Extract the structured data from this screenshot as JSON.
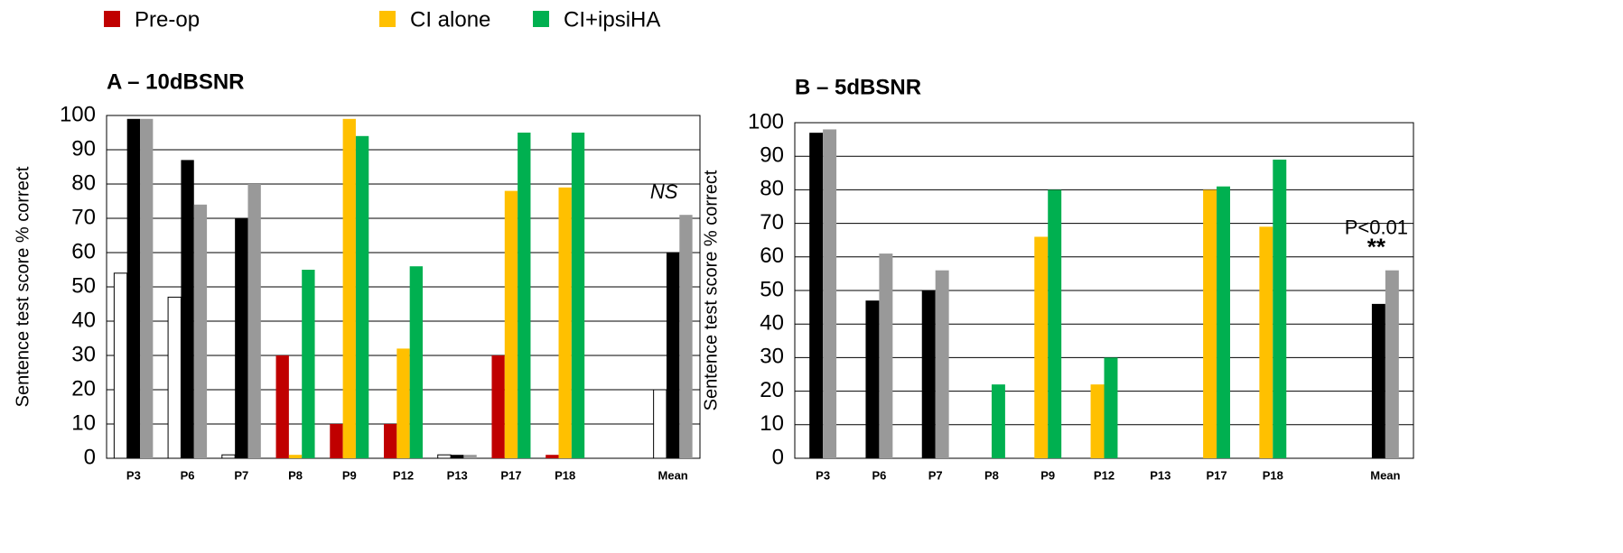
{
  "chart_data": [
    {
      "type": "bar",
      "title": "A – 10dBSNR",
      "y_label": "Sentence test score % correct",
      "categories": [
        "P3",
        "P6",
        "P7",
        "P8",
        "P9",
        "P12",
        "P13",
        "P17",
        "P18",
        null,
        "Mean"
      ],
      "series": [
        {
          "name": "Pre-op",
          "color": "#c00000",
          "colors": [
            "#ffffff",
            "#ffffff",
            "#ffffff",
            "#c00000",
            "#c00000",
            "#c00000",
            "#ffffff",
            "#c00000",
            "#c00000",
            "#ffffff",
            "#ffffff"
          ],
          "values": [
            54,
            47,
            1,
            30,
            10,
            10,
            1,
            30,
            1,
            null,
            20
          ]
        },
        {
          "name": "CI alone",
          "color": "#ffc000",
          "colors": [
            "#000000",
            "#000000",
            "#000000",
            "#ffc000",
            "#ffc000",
            "#ffc000",
            "#000000",
            "#ffc000",
            "#ffc000",
            "#000000",
            "#000000"
          ],
          "values": [
            99,
            87,
            70,
            1,
            99,
            32,
            1,
            78,
            79,
            null,
            60
          ]
        },
        {
          "name": "CI+ipsiHA",
          "color": "#00b050",
          "colors": [
            "#999999",
            "#999999",
            "#999999",
            "#00b050",
            "#00b050",
            "#00b050",
            "#999999",
            "#00b050",
            "#00b050",
            "#999999",
            "#999999"
          ],
          "values": [
            99,
            74,
            80,
            55,
            94,
            56,
            1,
            95,
            95,
            null,
            71
          ]
        }
      ],
      "annotations": [
        "NS"
      ],
      "ylim": [
        0,
        100
      ],
      "yticks": [
        0,
        10,
        20,
        30,
        40,
        50,
        60,
        70,
        80,
        90,
        100
      ],
      "grid": true
    },
    {
      "type": "bar",
      "title": "B – 5dBSNR",
      "y_label": "Sentence test score % correct",
      "categories": [
        "P3",
        "P6",
        "P7",
        "P8",
        "P9",
        "P12",
        "P13",
        "P17",
        "P18",
        null,
        "Mean"
      ],
      "series": [
        {
          "color": "#ffc000",
          "colors": [
            "#000000",
            "#000000",
            "#000000",
            "#ffc000",
            "#ffc000",
            "#ffc000",
            "#000000",
            "#ffc000",
            "#ffc000",
            "#000000",
            "#000000"
          ],
          "values": [
            97,
            47,
            50,
            null,
            66,
            22,
            null,
            80,
            69,
            null,
            46
          ]
        },
        {
          "color": "#00b050",
          "colors": [
            "#999999",
            "#999999",
            "#999999",
            "#00b050",
            "#00b050",
            "#00b050",
            "#999999",
            "#00b050",
            "#00b050",
            "#999999",
            "#999999"
          ],
          "values": [
            98,
            61,
            56,
            22,
            80,
            30,
            null,
            81,
            89,
            null,
            56
          ]
        }
      ],
      "annotations": [
        "P<0.01",
        "**"
      ],
      "ylim": [
        0,
        100
      ],
      "yticks": [
        0,
        10,
        20,
        30,
        40,
        50,
        60,
        70,
        80,
        90,
        100
      ],
      "grid": true
    }
  ]
}
